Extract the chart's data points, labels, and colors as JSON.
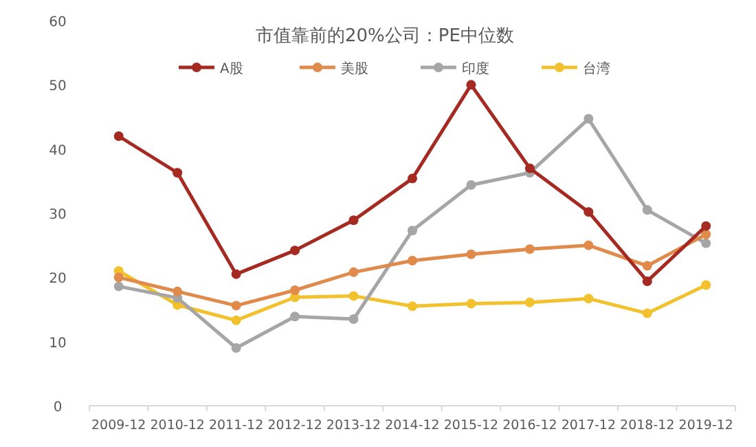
{
  "chart_data": {
    "type": "line",
    "title": "市值靠前的20%公司：PE中位数",
    "categories": [
      "2009-12",
      "2010-12",
      "2011-12",
      "2012-12",
      "2013-12",
      "2014-12",
      "2015-12",
      "2016-12",
      "2017-12",
      "2018-12",
      "2019-12"
    ],
    "series": [
      {
        "name": "A股",
        "color": "#a52a22",
        "values": [
          42,
          36.3,
          20.5,
          24.2,
          28.9,
          35.4,
          50,
          37,
          30.2,
          19.4,
          28
        ]
      },
      {
        "name": "美股",
        "color": "#e08a4c",
        "values": [
          20,
          17.8,
          15.6,
          18,
          20.8,
          22.6,
          23.6,
          24.4,
          25,
          21.8,
          26.7
        ]
      },
      {
        "name": "印度",
        "color": "#a6a6a6",
        "values": [
          18.6,
          16.8,
          9,
          13.9,
          13.5,
          27.3,
          34.4,
          36.3,
          44.7,
          30.5,
          25.3
        ]
      },
      {
        "name": "台湾",
        "color": "#f2c12e",
        "values": [
          21,
          15.7,
          13.3,
          16.9,
          17.1,
          15.5,
          15.9,
          16.1,
          16.7,
          14.4,
          18.8
        ]
      }
    ],
    "ylim": [
      0,
      60
    ],
    "yticks": [
      0,
      10,
      20,
      30,
      40,
      50,
      60
    ],
    "legend": "top",
    "marker": "circle",
    "line_style": "solid",
    "grid": false
  }
}
